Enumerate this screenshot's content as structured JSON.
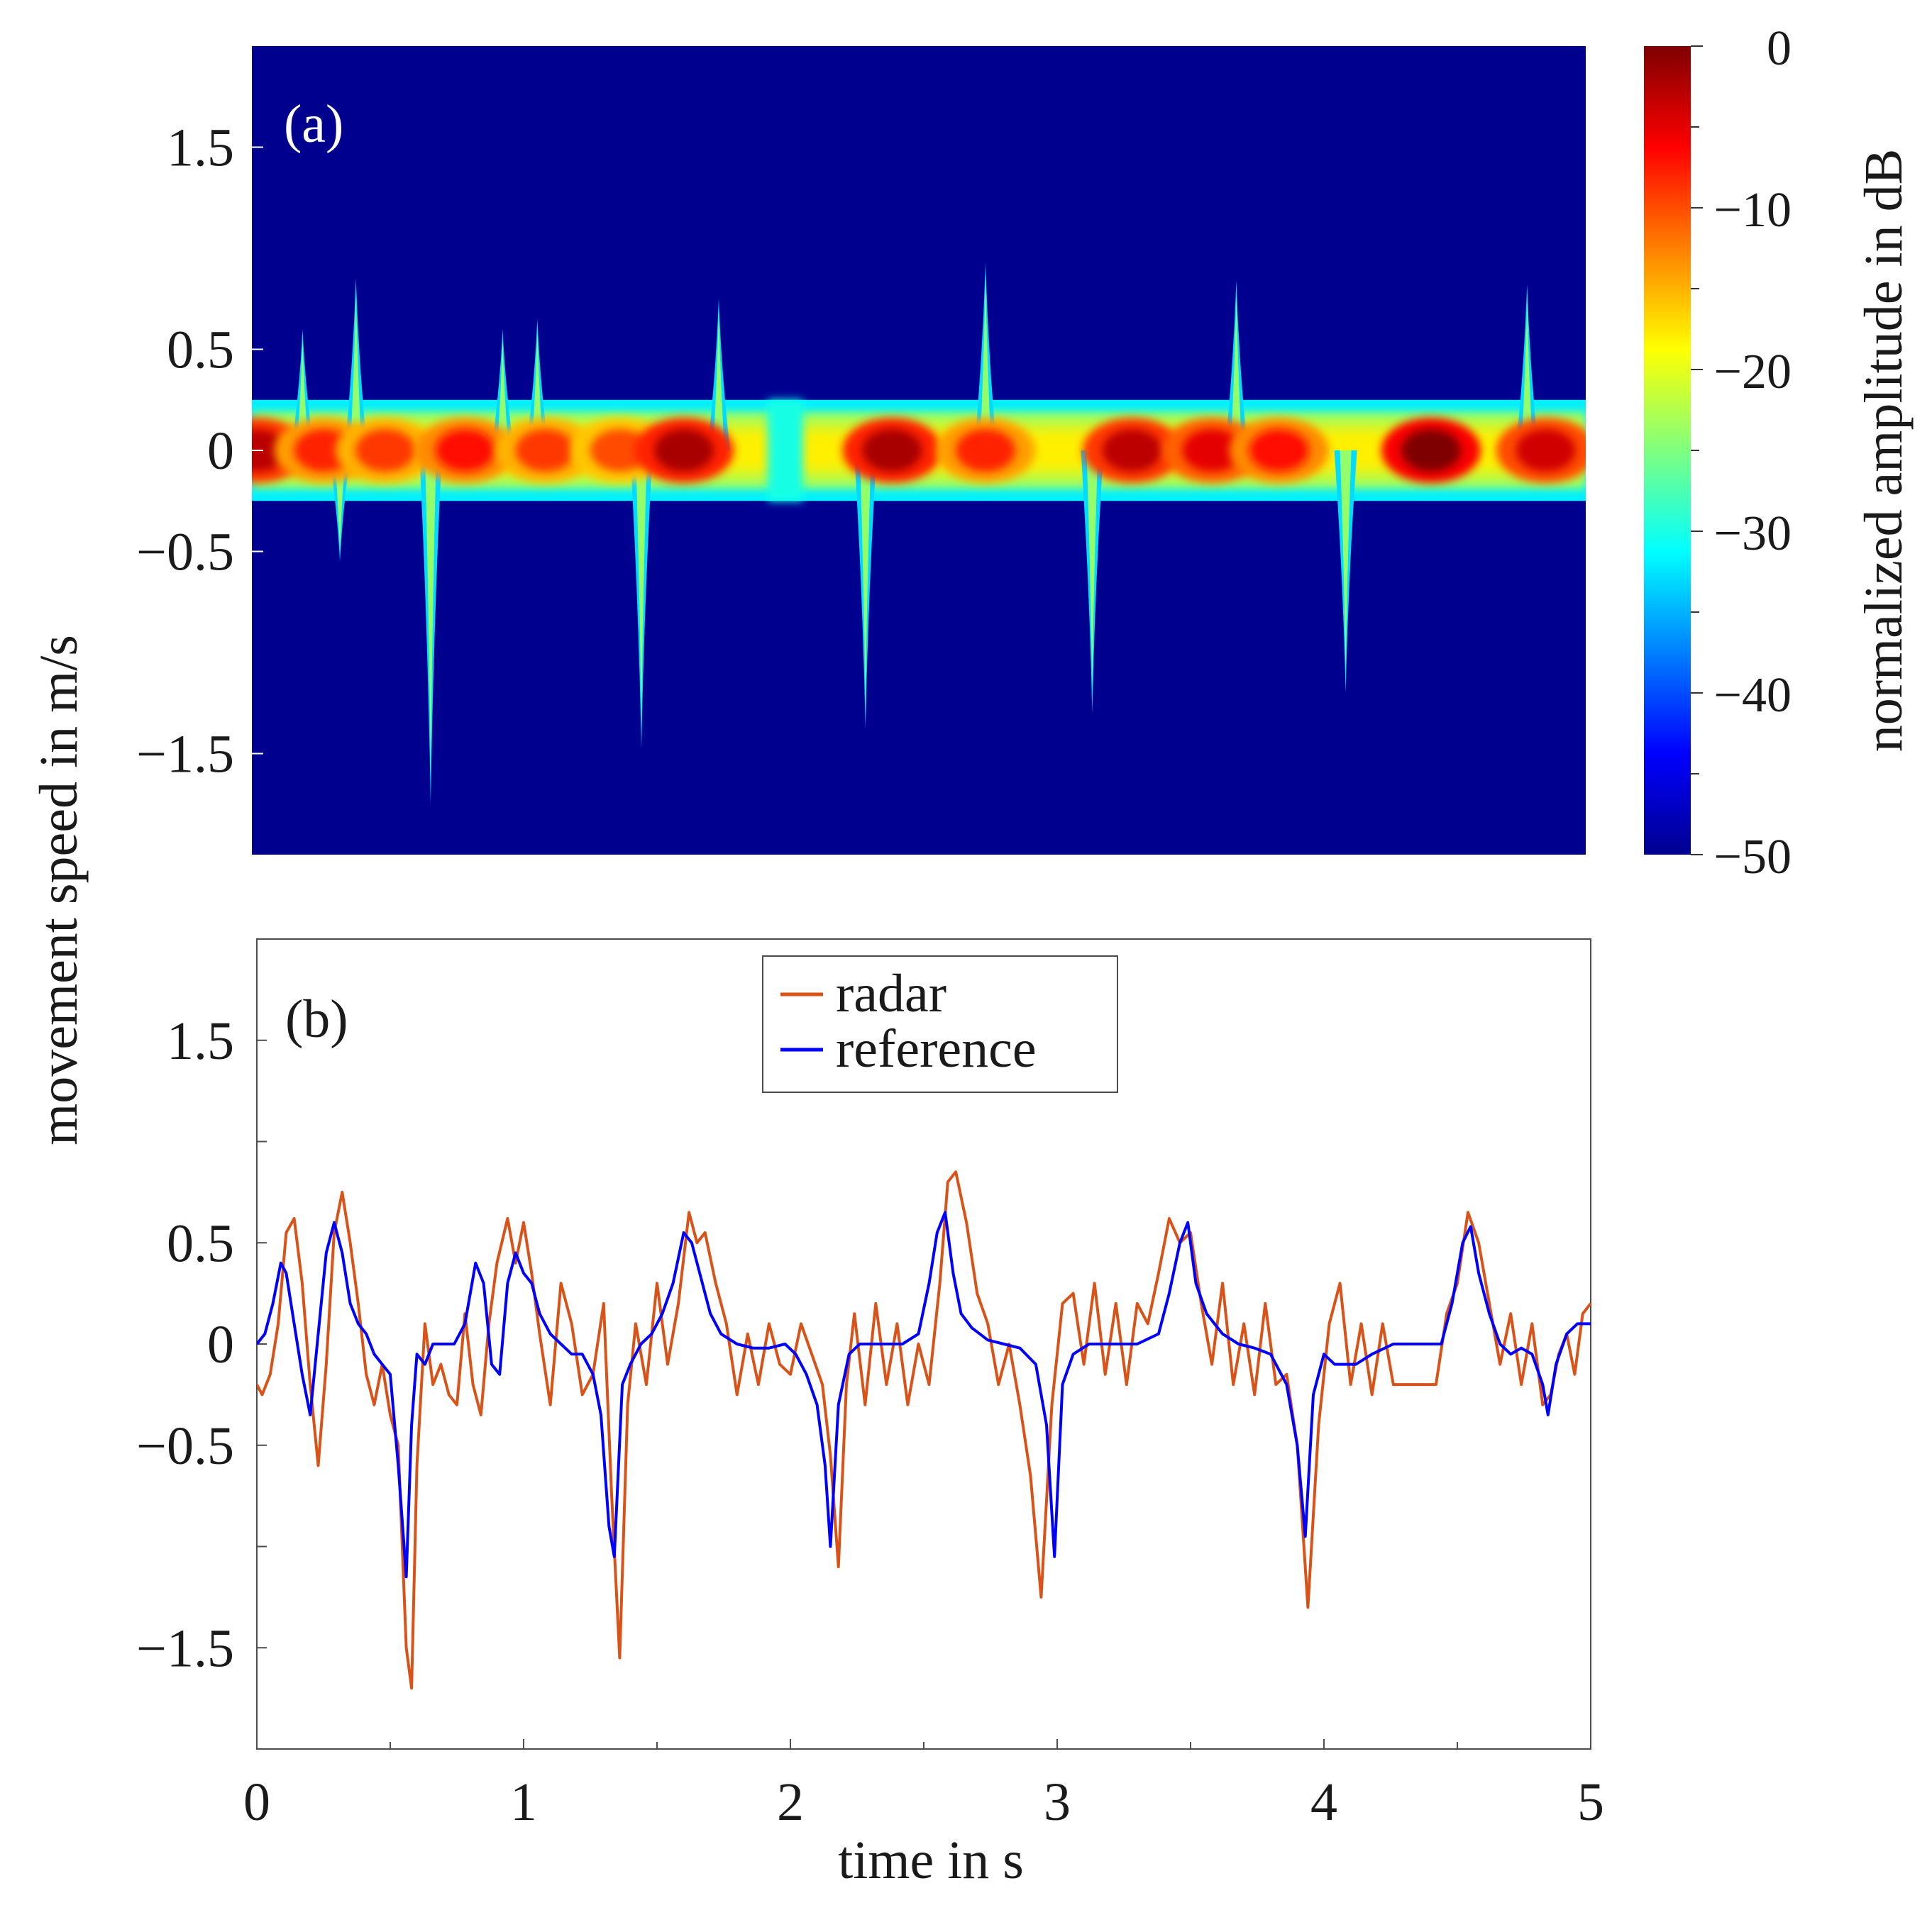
{
  "figure": {
    "ylabel": "movement speed in m/s",
    "xlabel": "time in s",
    "colors": {
      "radar": "#d95319",
      "reference": "#0000ff",
      "background": "#00008f"
    }
  },
  "chart_data": [
    {
      "type": "heatmap",
      "panel_label": "(a)",
      "title": "",
      "xlabel": "",
      "ylabel": "movement speed in m/s",
      "xlim": [
        0,
        5
      ],
      "ylim": [
        -2.0,
        2.0
      ],
      "yticks": [
        -1.5,
        -0.5,
        0,
        0.5,
        1.5
      ],
      "ytick_labels": [
        "−1.5",
        "−0.5",
        "0",
        "0.5",
        "1.5"
      ],
      "colormap": "jet",
      "colorbar": {
        "label": "normalized amplitude in dB",
        "range": [
          -50,
          0
        ],
        "ticks": [
          0,
          -10,
          -20,
          -30,
          -40,
          -50
        ],
        "tick_labels": [
          "0",
          "−10",
          "−20",
          "−30",
          "−40",
          "−50"
        ]
      },
      "band": {
        "center": 0,
        "halfwidth": 0.25
      },
      "hotspots": [
        {
          "t": 0.02,
          "amp": -3
        },
        {
          "t": 0.27,
          "amp": -8
        },
        {
          "t": 0.5,
          "amp": -9
        },
        {
          "t": 0.8,
          "amp": -7
        },
        {
          "t": 1.1,
          "amp": -9
        },
        {
          "t": 1.38,
          "amp": -10
        },
        {
          "t": 1.62,
          "amp": -2
        },
        {
          "t": 2.4,
          "amp": -2
        },
        {
          "t": 2.75,
          "amp": -8
        },
        {
          "t": 3.3,
          "amp": -3
        },
        {
          "t": 3.6,
          "amp": -5
        },
        {
          "t": 3.85,
          "amp": -7
        },
        {
          "t": 4.42,
          "amp": 0
        },
        {
          "t": 4.85,
          "amp": -4
        }
      ],
      "gap_time": 2.0,
      "spikes": [
        {
          "t": 0.19,
          "v": 0.6
        },
        {
          "t": 0.39,
          "v": 0.85
        },
        {
          "t": 0.94,
          "v": 0.6
        },
        {
          "t": 1.07,
          "v": 0.65
        },
        {
          "t": 1.75,
          "v": 0.75
        },
        {
          "t": 2.75,
          "v": 0.93
        },
        {
          "t": 3.69,
          "v": 0.84
        },
        {
          "t": 4.78,
          "v": 0.82
        },
        {
          "t": 0.33,
          "v": -0.55
        },
        {
          "t": 0.67,
          "v": -1.75
        },
        {
          "t": 1.46,
          "v": -1.48
        },
        {
          "t": 2.3,
          "v": -1.38
        },
        {
          "t": 3.15,
          "v": -1.3
        },
        {
          "t": 4.1,
          "v": -1.2
        }
      ]
    },
    {
      "type": "line",
      "panel_label": "(b)",
      "title": "",
      "xlabel": "time in s",
      "ylabel": "movement speed in m/s",
      "xlim": [
        0,
        5
      ],
      "ylim": [
        -2.0,
        2.0
      ],
      "xticks": [
        0,
        1,
        2,
        3,
        4,
        5
      ],
      "xtick_labels": [
        "0",
        "1",
        "2",
        "3",
        "4",
        "5"
      ],
      "yticks": [
        -1.5,
        -0.5,
        0,
        0.5,
        1.5
      ],
      "ytick_labels": [
        "−1.5",
        "−0.5",
        "0",
        "0.5",
        "1.5"
      ],
      "legend": {
        "placement": "top-center",
        "entries": [
          "radar",
          "reference"
        ]
      },
      "series": [
        {
          "name": "radar",
          "color": "#d95319",
          "x": [
            0.0,
            0.02,
            0.05,
            0.08,
            0.11,
            0.14,
            0.17,
            0.2,
            0.23,
            0.26,
            0.29,
            0.32,
            0.35,
            0.38,
            0.41,
            0.44,
            0.47,
            0.5,
            0.53,
            0.56,
            0.58,
            0.6,
            0.63,
            0.66,
            0.69,
            0.72,
            0.75,
            0.78,
            0.81,
            0.84,
            0.87,
            0.9,
            0.94,
            0.97,
            1.0,
            1.03,
            1.06,
            1.1,
            1.14,
            1.18,
            1.22,
            1.26,
            1.3,
            1.33,
            1.36,
            1.39,
            1.42,
            1.46,
            1.5,
            1.54,
            1.58,
            1.62,
            1.65,
            1.68,
            1.72,
            1.76,
            1.8,
            1.84,
            1.88,
            1.92,
            1.96,
            2.0,
            2.04,
            2.08,
            2.12,
            2.15,
            2.18,
            2.21,
            2.24,
            2.28,
            2.32,
            2.36,
            2.4,
            2.44,
            2.48,
            2.52,
            2.56,
            2.59,
            2.62,
            2.66,
            2.7,
            2.74,
            2.78,
            2.82,
            2.86,
            2.9,
            2.94,
            2.98,
            3.02,
            3.06,
            3.1,
            3.14,
            3.18,
            3.22,
            3.26,
            3.3,
            3.34,
            3.38,
            3.42,
            3.46,
            3.5,
            3.54,
            3.58,
            3.62,
            3.66,
            3.7,
            3.74,
            3.78,
            3.82,
            3.86,
            3.9,
            3.94,
            3.98,
            4.02,
            4.06,
            4.1,
            4.14,
            4.18,
            4.22,
            4.26,
            4.3,
            4.34,
            4.38,
            4.42,
            4.46,
            4.5,
            4.54,
            4.58,
            4.62,
            4.66,
            4.7,
            4.74,
            4.78,
            4.82,
            4.85,
            4.88,
            4.91,
            4.94,
            4.97,
            5.0
          ],
          "y": [
            -0.2,
            -0.25,
            -0.15,
            0.1,
            0.55,
            0.62,
            0.3,
            -0.2,
            -0.6,
            -0.1,
            0.55,
            0.75,
            0.5,
            0.2,
            -0.15,
            -0.3,
            -0.1,
            -0.35,
            -0.5,
            -1.5,
            -1.7,
            -0.6,
            0.1,
            -0.2,
            -0.1,
            -0.25,
            -0.3,
            0.15,
            -0.2,
            -0.35,
            0.1,
            0.4,
            0.62,
            0.4,
            0.6,
            0.35,
            0.05,
            -0.3,
            0.3,
            0.1,
            -0.25,
            -0.15,
            0.2,
            -0.75,
            -1.55,
            -0.3,
            0.1,
            -0.2,
            0.3,
            -0.1,
            0.2,
            0.65,
            0.5,
            0.55,
            0.3,
            0.1,
            -0.25,
            0.05,
            -0.2,
            0.1,
            -0.1,
            -0.15,
            0.1,
            -0.05,
            -0.2,
            -0.55,
            -1.1,
            -0.2,
            0.15,
            -0.3,
            0.2,
            -0.2,
            0.1,
            -0.3,
            0.0,
            -0.2,
            0.3,
            0.8,
            0.85,
            0.6,
            0.25,
            0.1,
            -0.2,
            0.0,
            -0.3,
            -0.65,
            -1.25,
            -0.3,
            0.2,
            0.25,
            -0.1,
            0.3,
            -0.15,
            0.2,
            -0.2,
            0.2,
            0.1,
            0.35,
            0.62,
            0.5,
            0.55,
            0.2,
            -0.1,
            0.3,
            -0.2,
            0.1,
            -0.25,
            0.2,
            -0.2,
            -0.15,
            -0.5,
            -1.3,
            -0.4,
            0.1,
            0.3,
            -0.2,
            0.1,
            -0.25,
            0.1,
            -0.2,
            -0.2,
            -0.2,
            -0.2,
            -0.2,
            0.15,
            0.3,
            0.65,
            0.5,
            0.2,
            -0.1,
            0.15,
            -0.2,
            0.1,
            -0.3,
            -0.25,
            -0.05,
            0.05,
            -0.15,
            0.15,
            0.2
          ]
        },
        {
          "name": "reference",
          "color": "#0000ff",
          "x": [
            0.0,
            0.03,
            0.06,
            0.09,
            0.11,
            0.14,
            0.17,
            0.2,
            0.23,
            0.26,
            0.29,
            0.32,
            0.35,
            0.38,
            0.41,
            0.44,
            0.47,
            0.5,
            0.53,
            0.56,
            0.58,
            0.6,
            0.63,
            0.66,
            0.7,
            0.74,
            0.78,
            0.82,
            0.85,
            0.88,
            0.91,
            0.94,
            0.97,
            1.0,
            1.03,
            1.06,
            1.1,
            1.14,
            1.18,
            1.22,
            1.26,
            1.29,
            1.32,
            1.34,
            1.37,
            1.4,
            1.44,
            1.48,
            1.52,
            1.56,
            1.6,
            1.63,
            1.66,
            1.7,
            1.74,
            1.8,
            1.86,
            1.92,
            1.98,
            2.02,
            2.06,
            2.1,
            2.13,
            2.15,
            2.18,
            2.22,
            2.26,
            2.3,
            2.36,
            2.42,
            2.48,
            2.52,
            2.55,
            2.58,
            2.61,
            2.64,
            2.68,
            2.74,
            2.8,
            2.86,
            2.92,
            2.96,
            2.99,
            3.02,
            3.06,
            3.12,
            3.2,
            3.3,
            3.38,
            3.42,
            3.46,
            3.49,
            3.52,
            3.56,
            3.62,
            3.68,
            3.74,
            3.8,
            3.86,
            3.9,
            3.93,
            3.96,
            4.0,
            4.04,
            4.08,
            4.12,
            4.18,
            4.26,
            4.36,
            4.44,
            4.48,
            4.52,
            4.55,
            4.58,
            4.62,
            4.66,
            4.7,
            4.74,
            4.78,
            4.82,
            4.84,
            4.87,
            4.91,
            4.95,
            5.0
          ],
          "y": [
            0.0,
            0.05,
            0.2,
            0.4,
            0.35,
            0.1,
            -0.15,
            -0.35,
            0.05,
            0.45,
            0.6,
            0.45,
            0.2,
            0.1,
            0.05,
            -0.05,
            -0.1,
            -0.15,
            -0.6,
            -1.15,
            -0.4,
            -0.05,
            -0.1,
            0.0,
            0.0,
            0.0,
            0.1,
            0.4,
            0.3,
            -0.1,
            -0.15,
            0.3,
            0.45,
            0.35,
            0.3,
            0.15,
            0.05,
            0.0,
            -0.05,
            -0.05,
            -0.15,
            -0.35,
            -0.9,
            -1.05,
            -0.2,
            -0.1,
            0.0,
            0.05,
            0.15,
            0.3,
            0.55,
            0.5,
            0.35,
            0.15,
            0.05,
            0.0,
            -0.02,
            -0.02,
            0.0,
            -0.05,
            -0.15,
            -0.3,
            -0.6,
            -1.0,
            -0.3,
            -0.05,
            0.0,
            0.0,
            0.0,
            0.0,
            0.05,
            0.3,
            0.55,
            0.65,
            0.35,
            0.15,
            0.08,
            0.02,
            0.0,
            -0.02,
            -0.1,
            -0.4,
            -1.05,
            -0.2,
            -0.05,
            0.0,
            0.0,
            0.0,
            0.05,
            0.25,
            0.5,
            0.6,
            0.3,
            0.15,
            0.05,
            0.0,
            -0.02,
            -0.05,
            -0.2,
            -0.5,
            -0.95,
            -0.25,
            -0.05,
            -0.1,
            -0.1,
            -0.1,
            -0.05,
            0.0,
            0.0,
            0.0,
            0.2,
            0.5,
            0.58,
            0.35,
            0.15,
            0.0,
            -0.05,
            -0.02,
            -0.05,
            -0.2,
            -0.35,
            -0.1,
            0.05,
            0.1,
            0.1
          ]
        }
      ]
    }
  ]
}
